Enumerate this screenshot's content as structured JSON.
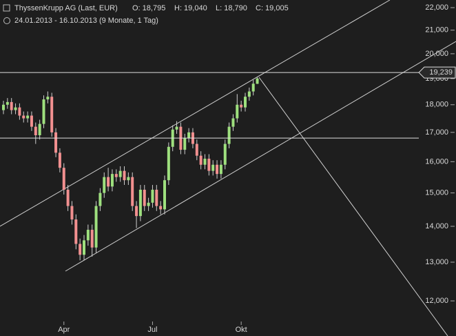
{
  "chart_data": {
    "type": "candlestick",
    "title": "ThyssenKrupp AG (Last, EUR)",
    "quote": [
      "O: 18,795",
      "H: 19,040",
      "L: 18,790",
      "C: 19,005"
    ],
    "subtitle": "24.01.2013 - 16.10.2013 (9 Monate, 1 Tag)",
    "categories": [
      null,
      null,
      null,
      null,
      null,
      null,
      null,
      null,
      null,
      null,
      null,
      null,
      null,
      null,
      null,
      "Apr",
      null,
      null,
      null,
      null,
      null,
      null,
      null,
      null,
      null,
      null,
      null,
      null,
      null,
      null,
      null,
      null,
      null,
      null,
      null,
      null,
      null,
      "Jul",
      null,
      null,
      null,
      null,
      null,
      null,
      null,
      null,
      null,
      null,
      null,
      null,
      null,
      null,
      null,
      null,
      null,
      null,
      null,
      null,
      null,
      "Okt",
      null,
      null,
      null,
      null
    ],
    "open": [
      17800,
      18000,
      18100,
      17800,
      17900,
      17600,
      17500,
      17600,
      17200,
      16900,
      17300,
      18200,
      18300,
      17000,
      16300,
      15800,
      15100,
      14600,
      14200,
      13500,
      13200,
      13600,
      13900,
      13400,
      14600,
      15000,
      15500,
      15200,
      15600,
      15500,
      15700,
      15400,
      15500,
      14600,
      14300,
      15100,
      14600,
      14700,
      15100,
      14600,
      14500,
      15400,
      16500,
      17100,
      17200,
      16400,
      16800,
      17000,
      16600,
      16200,
      15900,
      16100,
      15700,
      15900,
      15600,
      15900,
      16600,
      17200,
      17500,
      18000,
      17900,
      18300,
      18500,
      18795
    ],
    "high": [
      18150,
      18250,
      18250,
      18050,
      18050,
      17750,
      17750,
      17750,
      17350,
      17450,
      18350,
      18500,
      18450,
      17150,
      16450,
      15950,
      15250,
      14750,
      14350,
      13650,
      13750,
      14050,
      14050,
      14750,
      15150,
      15650,
      15800,
      15750,
      15750,
      15850,
      15850,
      15650,
      15650,
      14750,
      15250,
      15250,
      14850,
      15250,
      15250,
      14750,
      15550,
      16650,
      17250,
      17400,
      17350,
      16950,
      17150,
      17150,
      16750,
      16350,
      16250,
      16250,
      16050,
      16050,
      16050,
      16750,
      17350,
      17650,
      18400,
      18150,
      18450,
      18650,
      18950,
      19040
    ],
    "low": [
      17650,
      17850,
      17650,
      17650,
      17450,
      17350,
      17350,
      17050,
      16600,
      16750,
      17150,
      18050,
      16850,
      16150,
      15650,
      14950,
      14450,
      14050,
      13350,
      13050,
      13050,
      13450,
      13150,
      13250,
      14450,
      14850,
      15050,
      15050,
      15350,
      15350,
      15250,
      15250,
      14450,
      13950,
      14150,
      14450,
      14450,
      14550,
      14450,
      14350,
      14350,
      15250,
      16350,
      16950,
      16250,
      16250,
      16650,
      16450,
      16050,
      15750,
      15750,
      15550,
      15550,
      15450,
      15450,
      15750,
      16450,
      17050,
      17350,
      17750,
      17750,
      18150,
      18350,
      18790
    ],
    "close": [
      18000,
      18100,
      17800,
      17900,
      17600,
      17500,
      17600,
      17200,
      16900,
      17300,
      18200,
      18300,
      17000,
      16300,
      15800,
      15100,
      14600,
      14200,
      13500,
      13200,
      13600,
      13900,
      13400,
      14600,
      15000,
      15500,
      15200,
      15600,
      15500,
      15700,
      15400,
      15500,
      14600,
      14300,
      15100,
      14600,
      14700,
      15100,
      14600,
      14500,
      15400,
      16500,
      17100,
      17200,
      16400,
      16800,
      17000,
      16600,
      16200,
      15900,
      16100,
      15700,
      15900,
      15600,
      15900,
      16600,
      17200,
      17500,
      18000,
      17900,
      18300,
      18500,
      18800,
      19005
    ],
    "up_color": "#9ee07e",
    "down_color": "#f29090",
    "ylim": [
      11160,
      22350
    ],
    "log_scale": true,
    "yticks": [
      {
        "value": 12000,
        "label": "12,000"
      },
      {
        "value": 13000,
        "label": "13,000"
      },
      {
        "value": 14000,
        "label": "14,000"
      },
      {
        "value": 15000,
        "label": "15,000"
      },
      {
        "value": 16000,
        "label": "16,000"
      },
      {
        "value": 17000,
        "label": "17,000"
      },
      {
        "value": 18000,
        "label": "18,000"
      },
      {
        "value": 19000,
        "label": "19,000"
      },
      {
        "value": 20000,
        "label": "20,000"
      },
      {
        "value": 21000,
        "label": "21,000"
      },
      {
        "value": 22000,
        "label": "22,000"
      }
    ],
    "price_lines": [
      {
        "value": 19239,
        "label": "19,239"
      },
      {
        "value": 16800
      }
    ]
  }
}
